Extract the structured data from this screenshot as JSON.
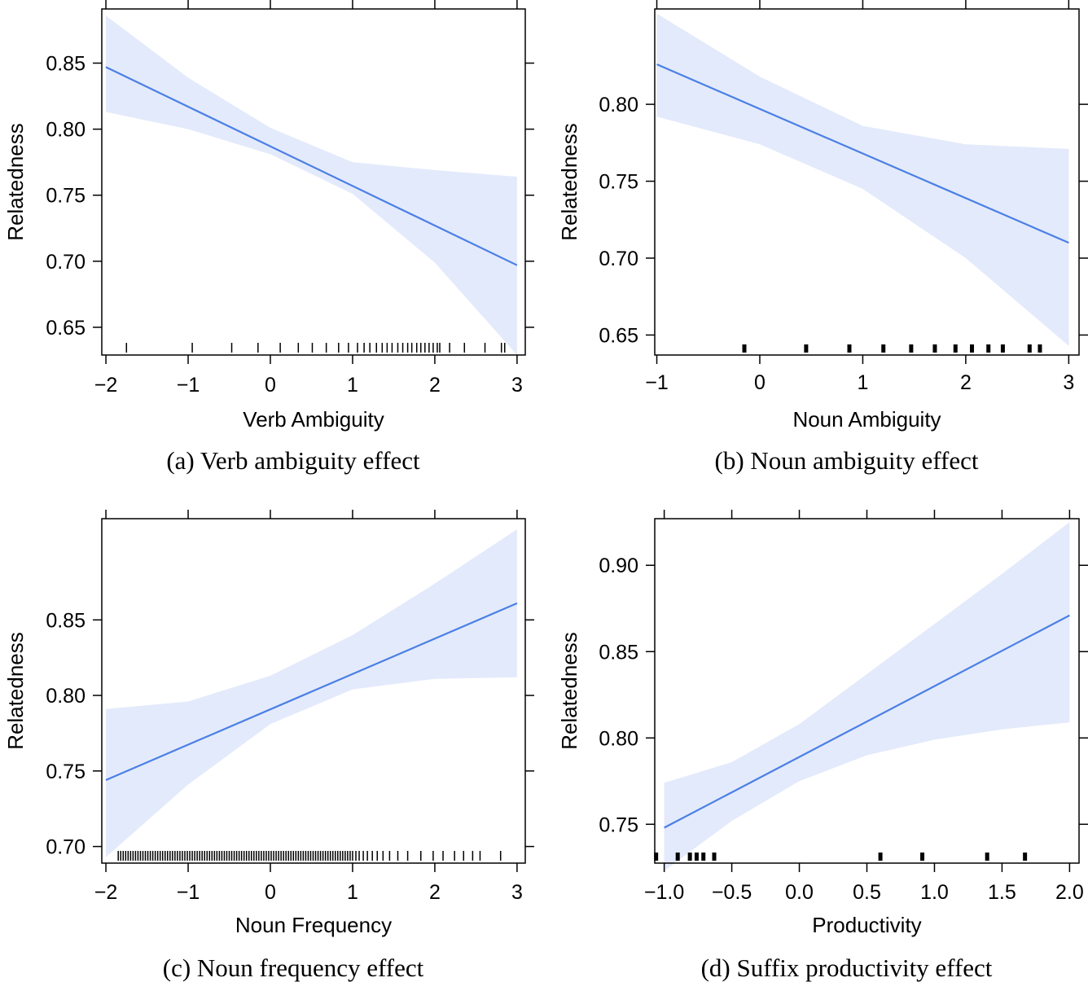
{
  "figure": {
    "panels": [
      "a",
      "b",
      "c",
      "d"
    ]
  },
  "colors": {
    "line": "#4a7fe6",
    "band": "#e3eafb",
    "axis": "#000000"
  },
  "chart_data": [
    {
      "type": "line",
      "panel": "a",
      "caption": "(a) Verb ambiguity effect",
      "xlabel": "Verb Ambiguity",
      "ylabel": "Relatedness",
      "xlim": [
        -2.05,
        3.1
      ],
      "ylim": [
        0.629,
        0.891
      ],
      "xticks": [
        -2,
        -1,
        0,
        1,
        2,
        3
      ],
      "xtick_labels": [
        "−2",
        "−1",
        "0",
        "1",
        "2",
        "3"
      ],
      "yticks": [
        0.65,
        0.7,
        0.75,
        0.8,
        0.85
      ],
      "ytick_labels": [
        "0.65",
        "0.70",
        "0.75",
        "0.80",
        "0.85"
      ],
      "fit": {
        "x": [
          -2,
          3
        ],
        "y": [
          0.847,
          0.697
        ]
      },
      "band": {
        "x": [
          -2,
          -1,
          0,
          1,
          2,
          3
        ],
        "upper": [
          0.886,
          0.839,
          0.801,
          0.775,
          0.769,
          0.764
        ],
        "lower": [
          0.813,
          0.8,
          0.781,
          0.751,
          0.699,
          0.629
        ]
      },
      "rug": [
        -1.75,
        -0.95,
        -0.47,
        -0.15,
        0.12,
        0.34,
        0.51,
        0.68,
        0.83,
        0.95,
        1.06,
        1.14,
        1.21,
        1.29,
        1.36,
        1.42,
        1.48,
        1.55,
        1.61,
        1.67,
        1.72,
        1.78,
        1.83,
        1.88,
        1.93,
        1.98,
        2.03,
        2.06,
        2.18,
        2.36,
        2.61,
        2.81,
        2.85
      ],
      "rug_weight": "thin"
    },
    {
      "type": "line",
      "panel": "b",
      "caption": "(b) Noun ambiguity effect",
      "xlabel": "Noun Ambiguity",
      "ylabel": "Relatedness",
      "xlim": [
        -1.02,
        3.1
      ],
      "ylim": [
        0.637,
        0.862
      ],
      "xticks": [
        -1,
        0,
        1,
        2,
        3
      ],
      "xtick_labels": [
        "−1",
        "0",
        "1",
        "2",
        "3"
      ],
      "yticks": [
        0.65,
        0.7,
        0.75,
        0.8
      ],
      "ytick_labels": [
        "0.65",
        "0.70",
        "0.75",
        "0.80"
      ],
      "fit": {
        "x": [
          -1,
          3
        ],
        "y": [
          0.826,
          0.71
        ]
      },
      "band": {
        "x": [
          -1,
          0,
          1,
          2,
          3
        ],
        "upper": [
          0.859,
          0.818,
          0.786,
          0.774,
          0.771
        ],
        "lower": [
          0.792,
          0.774,
          0.745,
          0.7,
          0.643
        ]
      },
      "rug": [
        -0.15,
        0.45,
        0.87,
        1.2,
        1.47,
        1.7,
        1.9,
        2.06,
        2.22,
        2.36,
        2.62,
        2.72
      ],
      "rug_weight": "thick"
    },
    {
      "type": "line",
      "panel": "c",
      "caption": "(c) Noun frequency effect",
      "xlabel": "Noun Frequency",
      "ylabel": "Relatedness",
      "xlim": [
        -2.05,
        3.1
      ],
      "ylim": [
        0.689,
        0.917
      ],
      "xticks": [
        -2,
        -1,
        0,
        1,
        2,
        3
      ],
      "xtick_labels": [
        "−2",
        "−1",
        "0",
        "1",
        "2",
        "3"
      ],
      "yticks": [
        0.7,
        0.75,
        0.8,
        0.85
      ],
      "ytick_labels": [
        "0.70",
        "0.75",
        "0.80",
        "0.85"
      ],
      "fit": {
        "x": [
          -2,
          3
        ],
        "y": [
          0.744,
          0.861
        ]
      },
      "band": {
        "x": [
          -2,
          -1,
          0,
          1,
          2,
          3
        ],
        "upper": [
          0.791,
          0.796,
          0.813,
          0.84,
          0.874,
          0.91
        ],
        "lower": [
          0.693,
          0.741,
          0.781,
          0.804,
          0.811,
          0.812
        ]
      },
      "rug": [
        -1.85,
        -1.82,
        -1.79,
        -1.76,
        -1.73,
        -1.7,
        -1.67,
        -1.64,
        -1.61,
        -1.58,
        -1.55,
        -1.52,
        -1.49,
        -1.46,
        -1.43,
        -1.4,
        -1.37,
        -1.34,
        -1.31,
        -1.28,
        -1.25,
        -1.22,
        -1.19,
        -1.16,
        -1.13,
        -1.1,
        -1.07,
        -1.04,
        -1.01,
        -0.98,
        -0.95,
        -0.92,
        -0.89,
        -0.86,
        -0.83,
        -0.8,
        -0.77,
        -0.74,
        -0.71,
        -0.68,
        -0.65,
        -0.62,
        -0.59,
        -0.56,
        -0.53,
        -0.5,
        -0.47,
        -0.44,
        -0.41,
        -0.38,
        -0.35,
        -0.32,
        -0.29,
        -0.26,
        -0.23,
        -0.2,
        -0.17,
        -0.14,
        -0.11,
        -0.08,
        -0.05,
        -0.02,
        0.01,
        0.04,
        0.07,
        0.1,
        0.13,
        0.16,
        0.19,
        0.22,
        0.25,
        0.28,
        0.31,
        0.34,
        0.37,
        0.4,
        0.43,
        0.46,
        0.49,
        0.52,
        0.55,
        0.58,
        0.61,
        0.64,
        0.67,
        0.7,
        0.73,
        0.76,
        0.79,
        0.82,
        0.85,
        0.88,
        0.91,
        0.94,
        0.97,
        1.0,
        1.04,
        1.08,
        1.13,
        1.18,
        1.24,
        1.3,
        1.37,
        1.45,
        1.55,
        1.67,
        1.83,
        1.98,
        2.1,
        2.24,
        2.35,
        2.46,
        2.55,
        2.8
      ],
      "rug_weight": "thin"
    },
    {
      "type": "line",
      "panel": "d",
      "caption": "(d) Suffix productivity effect",
      "xlabel": "Productivity",
      "ylabel": "Relatedness",
      "xlim": [
        -1.07,
        2.07
      ],
      "ylim": [
        0.7275,
        0.927
      ],
      "xticks": [
        -1,
        -0.5,
        0,
        0.5,
        1,
        1.5,
        2
      ],
      "xtick_labels": [
        "−1.0",
        "−0.5",
        "0.0",
        "0.5",
        "1.0",
        "1.5",
        "2.0"
      ],
      "yticks": [
        0.75,
        0.8,
        0.85,
        0.9
      ],
      "ytick_labels": [
        "0.75",
        "0.80",
        "0.85",
        "0.90"
      ],
      "fit": {
        "x": [
          -1,
          2
        ],
        "y": [
          0.748,
          0.871
        ]
      },
      "band": {
        "x": [
          -1,
          -0.5,
          0,
          0.5,
          1,
          1.5,
          2
        ],
        "upper": [
          0.774,
          0.786,
          0.808,
          0.837,
          0.866,
          0.895,
          0.925
        ],
        "lower": [
          0.723,
          0.752,
          0.775,
          0.79,
          0.799,
          0.805,
          0.809
        ]
      },
      "rug": [
        -1.06,
        -0.9,
        -0.81,
        -0.76,
        -0.71,
        -0.63,
        0.6,
        0.91,
        1.39,
        1.67
      ],
      "rug_weight": "thick"
    }
  ]
}
